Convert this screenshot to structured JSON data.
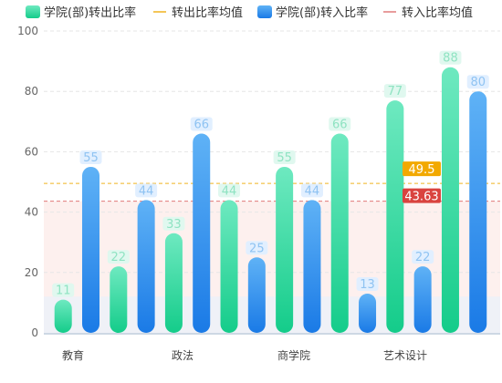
{
  "chart_data": {
    "type": "bar",
    "categories": [
      "教育",
      "政法",
      "商学院",
      "艺术设计"
    ],
    "bars": [
      {
        "category": "教育",
        "series": "out",
        "value": 11
      },
      {
        "category": "教育",
        "series": "in",
        "value": 55
      },
      {
        "category": "教育",
        "series": "out",
        "value": 22
      },
      {
        "category": "政法",
        "series": "in",
        "value": 44
      },
      {
        "category": "政法",
        "series": "out",
        "value": 33
      },
      {
        "category": "政法",
        "series": "in",
        "value": 66
      },
      {
        "category": "政法",
        "series": "out",
        "value": 44
      },
      {
        "category": "商学院",
        "series": "in",
        "value": 25
      },
      {
        "category": "商学院",
        "series": "out",
        "value": 55
      },
      {
        "category": "商学院",
        "series": "in",
        "value": 44
      },
      {
        "category": "商学院",
        "series": "out",
        "value": 66
      },
      {
        "category": "艺术设计",
        "series": "in",
        "value": 13
      },
      {
        "category": "艺术设计",
        "series": "out",
        "value": 77
      },
      {
        "category": "艺术设计",
        "series": "in",
        "value": 22
      },
      {
        "category": "艺术设计",
        "series": "out",
        "value": 88
      },
      {
        "category": "艺术设计",
        "series": "in",
        "value": 80
      }
    ],
    "series": [
      {
        "id": "out",
        "name": "学院(部)转出比率",
        "color_top": "#6ee9c0",
        "color_bottom": "#14cc8a",
        "label_color": "#8fe3c2",
        "label_bg": "#e0f8ef"
      },
      {
        "id": "in",
        "name": "学院(部)转入比率",
        "color_top": "#5fb2f6",
        "color_bottom": "#1a7ae6",
        "label_color": "#8fc3f2",
        "label_bg": "#e1efff"
      }
    ],
    "mean_lines": [
      {
        "name": "转出比率均值",
        "value": 49.5,
        "label": "49.5",
        "color": "#f0b320",
        "badge_color": "#f2a900"
      },
      {
        "name": "转入比率均值",
        "value": 43.63,
        "label": "43.63",
        "color": "#e07a7a",
        "badge_color": "#d9433f"
      }
    ],
    "legend_position": "top",
    "ylim": [
      0,
      100
    ],
    "yticks": [
      0,
      20,
      40,
      60,
      80,
      100
    ],
    "grid": true
  }
}
